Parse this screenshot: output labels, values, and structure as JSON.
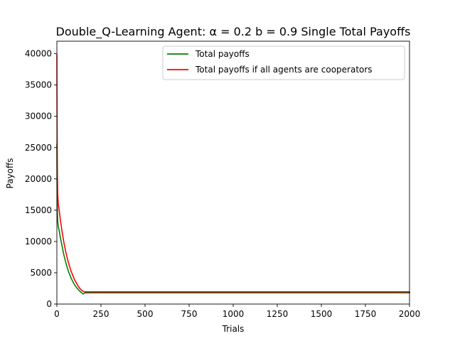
{
  "chart_data": {
    "type": "line",
    "title": "Double_Q-Learning Agent: α = 0.2 b = 0.9 Single Total Payoffs",
    "xlabel": "Trials",
    "ylabel": "Payoffs",
    "xlim": [
      0,
      2000
    ],
    "ylim": [
      0,
      42000
    ],
    "xticks": [
      0,
      250,
      500,
      750,
      1000,
      1250,
      1500,
      1750,
      2000
    ],
    "yticks": [
      0,
      5000,
      10000,
      15000,
      20000,
      25000,
      30000,
      35000,
      40000
    ],
    "grid": false,
    "legend_position": "top-right",
    "series": [
      {
        "name": "Total payoffs",
        "color": "#008000",
        "x": [
          0,
          1,
          2,
          3,
          5,
          8,
          12,
          16,
          20,
          30,
          40,
          50,
          60,
          70,
          80,
          90,
          100,
          110,
          120,
          130,
          140,
          150,
          160,
          200,
          300,
          500,
          750,
          1000,
          1250,
          1500,
          1750,
          2000
        ],
        "y": [
          25500,
          19000,
          16000,
          14500,
          13200,
          12400,
          11900,
          11300,
          10600,
          9200,
          7800,
          6700,
          5700,
          4900,
          4200,
          3600,
          3100,
          2700,
          2350,
          2050,
          1800,
          1600,
          1800,
          1800,
          1800,
          1800,
          1800,
          1800,
          1800,
          1800,
          1800,
          1800
        ]
      },
      {
        "name": "Total payoffs if all agents are cooperators",
        "color": "#ff0000",
        "x": [
          0,
          1,
          2,
          3,
          5,
          8,
          10,
          14,
          20,
          30,
          40,
          50,
          60,
          70,
          80,
          90,
          100,
          110,
          120,
          130,
          140,
          150,
          160,
          200,
          300,
          500,
          750,
          1000,
          1250,
          1500,
          1750,
          2000
        ],
        "y": [
          39800,
          30500,
          24500,
          20500,
          17500,
          16000,
          15600,
          14800,
          13400,
          11500,
          9800,
          8400,
          7200,
          6200,
          5300,
          4600,
          3900,
          3400,
          2900,
          2500,
          2200,
          2000,
          1950,
          1950,
          1950,
          1950,
          1950,
          1950,
          1950,
          1950,
          1950,
          1950
        ]
      }
    ]
  }
}
